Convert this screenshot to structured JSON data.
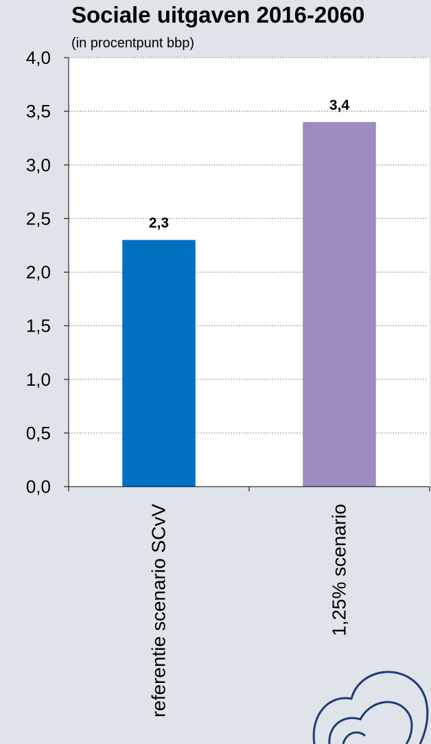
{
  "chart_data": {
    "type": "bar",
    "title": "Sociale uitgaven 2016-2060",
    "subtitle": "(in procentpunt bbp)",
    "xlabel": "",
    "ylabel": "",
    "categories": [
      "referentie scenario SCvV",
      "1,25% scenario"
    ],
    "values": [
      2.3,
      3.4
    ],
    "value_labels": [
      "2,3",
      "3,4"
    ],
    "bar_colors": [
      "#0070c0",
      "#9e8bc0"
    ],
    "ylim": [
      0,
      4
    ],
    "yticks": [
      0,
      0.5,
      1.0,
      1.5,
      2.0,
      2.5,
      3.0,
      3.5,
      4.0
    ],
    "ytick_labels": [
      "0,0",
      "0,5",
      "1,0",
      "1,5",
      "2,0",
      "2,5",
      "3,0",
      "3,5",
      "4,0"
    ],
    "grid": true,
    "legend": "none",
    "plot_background": "#ffffff",
    "page_background": "#dfe3ea"
  }
}
